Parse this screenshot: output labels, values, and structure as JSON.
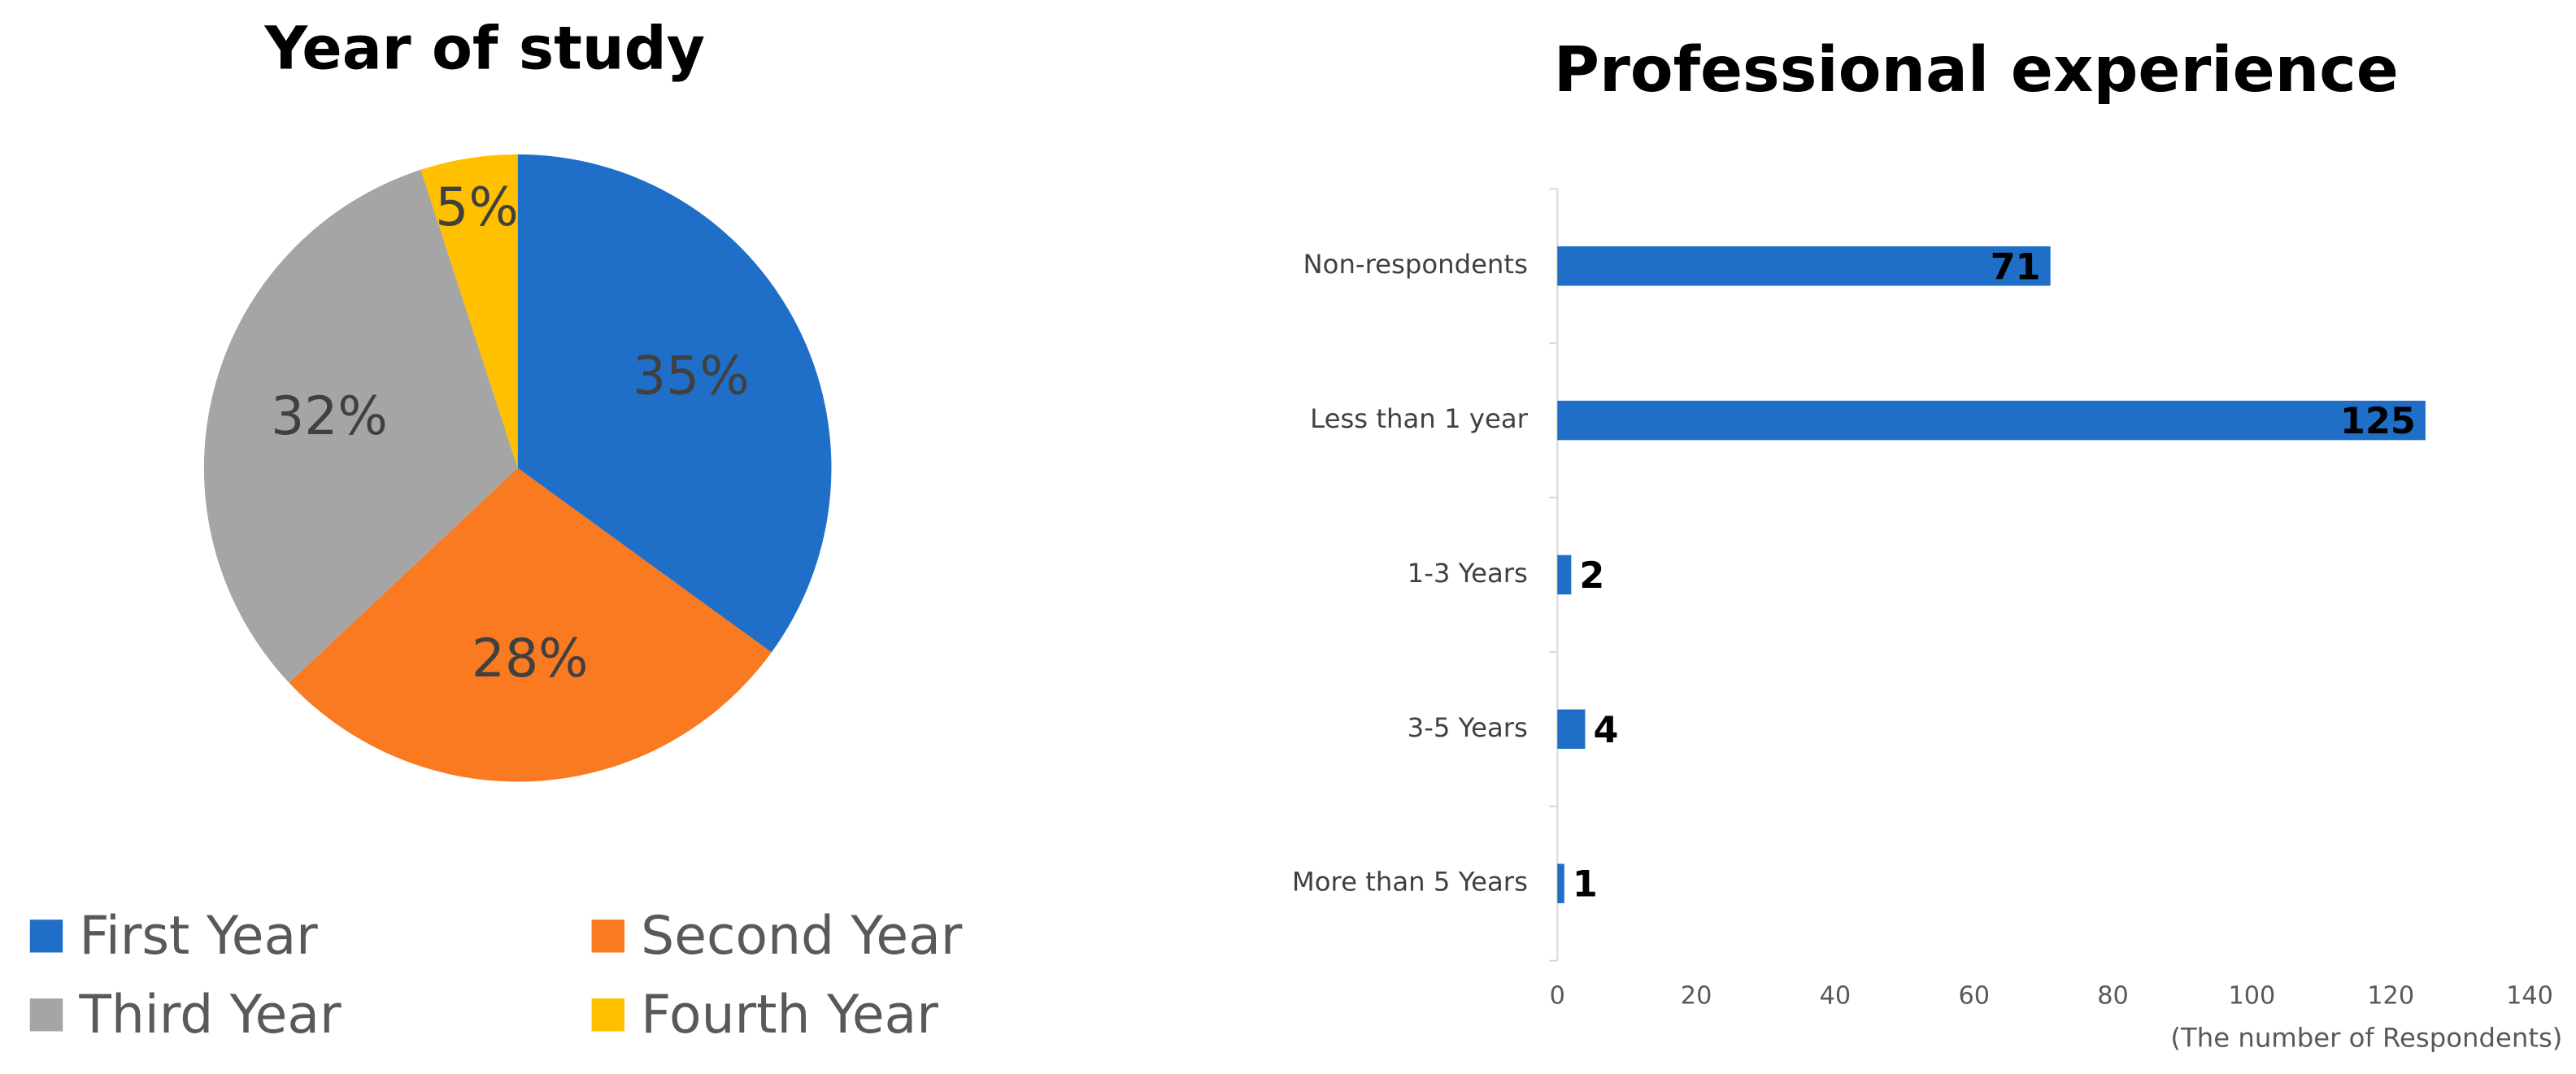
{
  "chart_data": [
    {
      "type": "pie",
      "title": "Year of study",
      "categories": [
        "First Year",
        "Second Year",
        "Third Year",
        "Fourth Year"
      ],
      "values": [
        35,
        28,
        32,
        5
      ],
      "value_labels": [
        "35%",
        "28%",
        "32%",
        "5%"
      ],
      "colors": [
        "#1f6fc9",
        "#f97a20",
        "#a5a5a5",
        "#ffc000"
      ],
      "legend": "bottom"
    },
    {
      "type": "bar",
      "orientation": "horizontal",
      "title": "Professional experience",
      "categories": [
        "Non-respondents",
        "Less than 1 year",
        "1-3 Years",
        "3-5 Years",
        "More than 5 Years"
      ],
      "values": [
        71,
        125,
        2,
        4,
        1
      ],
      "color": "#1f6fc9",
      "xlim": [
        0,
        140
      ],
      "xticks": [
        0,
        20,
        40,
        60,
        80,
        100,
        120,
        140
      ],
      "x_label": "(The number of Respondents)",
      "grid": false
    }
  ]
}
